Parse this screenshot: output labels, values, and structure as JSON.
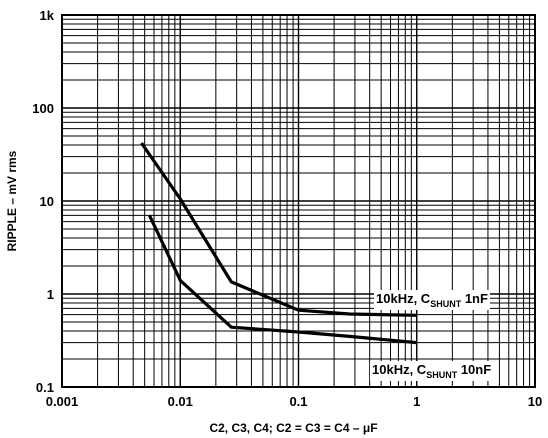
{
  "chart_data": {
    "type": "line",
    "title": "",
    "xlabel": "C2, C3, C4; C2 = C3 = C4 – μF",
    "ylabel": "RIPPLE – mV rms",
    "xscale": "log",
    "yscale": "log",
    "xlim": [
      0.001,
      10
    ],
    "ylim": [
      0.1,
      1000
    ],
    "grid": true,
    "x_ticks": [
      "0.001",
      "0.01",
      "0.1",
      "1",
      "10"
    ],
    "y_ticks": [
      "0.1",
      "1",
      "10",
      "100",
      "1k"
    ],
    "series": [
      {
        "label_main": "10kHz, C",
        "label_sub": "SHUNT",
        "label_tail": " 1nF",
        "x": [
          0.0047,
          0.01,
          0.027,
          0.1,
          0.27,
          1
        ],
        "y": [
          42,
          10.5,
          1.35,
          0.67,
          0.61,
          0.59
        ]
      },
      {
        "label_main": "10kHz, C",
        "label_sub": "SHUNT",
        "label_tail": " 10nF",
        "x": [
          0.0055,
          0.01,
          0.027,
          0.1,
          0.27,
          1
        ],
        "y": [
          7,
          1.4,
          0.44,
          0.39,
          0.35,
          0.3
        ]
      }
    ]
  }
}
